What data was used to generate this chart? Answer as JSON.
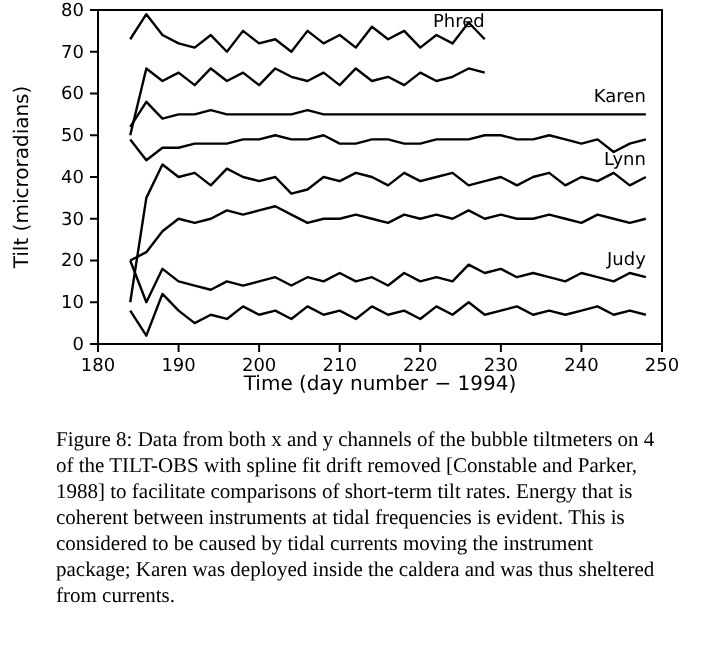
{
  "chart_data": {
    "type": "line",
    "xlabel": "Time (day number − 1994)",
    "ylabel": "Tilt (microradians)",
    "xlim": [
      180,
      250
    ],
    "xticks": [
      180,
      190,
      200,
      210,
      220,
      230,
      240,
      250
    ],
    "ylim": [
      0,
      80
    ],
    "yticks": [
      0,
      10,
      20,
      30,
      40,
      50,
      60,
      70,
      80
    ],
    "series": [
      {
        "name": "Phred",
        "color": "#000000",
        "x": [
          184,
          186,
          188,
          190,
          192,
          194,
          196,
          198,
          200,
          202,
          204,
          206,
          208,
          210,
          212,
          214,
          216,
          218,
          220,
          222,
          224,
          226,
          228
        ],
        "values": [
          73,
          79,
          74,
          72,
          71,
          74,
          70,
          75,
          72,
          73,
          70,
          75,
          72,
          74,
          71,
          76,
          73,
          75,
          71,
          74,
          72,
          77,
          73
        ]
      },
      {
        "color": "#000000",
        "x": [
          184,
          186,
          188,
          190,
          192,
          194,
          196,
          198,
          200,
          202,
          204,
          206,
          208,
          210,
          212,
          214,
          216,
          218,
          220,
          222,
          224,
          226,
          228
        ],
        "values": [
          50,
          66,
          63,
          65,
          62,
          66,
          63,
          65,
          62,
          66,
          64,
          63,
          65,
          62,
          66,
          63,
          64,
          62,
          65,
          63,
          64,
          66,
          65
        ]
      },
      {
        "name": "Karen",
        "color": "#000000",
        "x": [
          184,
          186,
          188,
          190,
          192,
          194,
          196,
          198,
          200,
          202,
          204,
          206,
          208,
          210,
          212,
          214,
          216,
          218,
          220,
          222,
          224,
          226,
          228,
          230,
          232,
          234,
          236,
          238,
          240,
          242,
          244,
          246,
          248
        ],
        "values": [
          52,
          58,
          54,
          55,
          55,
          56,
          55,
          55,
          55,
          55,
          55,
          56,
          55,
          55,
          55,
          55,
          55,
          55,
          55,
          55,
          55,
          55,
          55,
          55,
          55,
          55,
          55,
          55,
          55,
          55,
          55,
          55,
          55
        ]
      },
      {
        "color": "#000000",
        "x": [
          184,
          186,
          188,
          190,
          192,
          194,
          196,
          198,
          200,
          202,
          204,
          206,
          208,
          210,
          212,
          214,
          216,
          218,
          220,
          222,
          224,
          226,
          228,
          230,
          232,
          234,
          236,
          238,
          240,
          242,
          244,
          246,
          248
        ],
        "values": [
          49,
          44,
          47,
          47,
          48,
          48,
          48,
          49,
          49,
          50,
          49,
          49,
          50,
          48,
          48,
          49,
          49,
          48,
          48,
          49,
          49,
          49,
          50,
          50,
          49,
          49,
          50,
          49,
          48,
          49,
          46,
          48,
          49
        ]
      },
      {
        "name": "Lynn",
        "color": "#000000",
        "x": [
          184,
          186,
          188,
          190,
          192,
          194,
          196,
          198,
          200,
          202,
          204,
          206,
          208,
          210,
          212,
          214,
          216,
          218,
          220,
          222,
          224,
          226,
          228,
          230,
          232,
          234,
          236,
          238,
          240,
          242,
          244,
          246,
          248
        ],
        "values": [
          10,
          35,
          43,
          40,
          41,
          38,
          42,
          40,
          39,
          40,
          36,
          37,
          40,
          39,
          41,
          40,
          38,
          41,
          39,
          40,
          41,
          38,
          39,
          40,
          38,
          40,
          41,
          38,
          40,
          39,
          41,
          38,
          40
        ]
      },
      {
        "color": "#000000",
        "x": [
          184,
          186,
          188,
          190,
          192,
          194,
          196,
          198,
          200,
          202,
          204,
          206,
          208,
          210,
          212,
          214,
          216,
          218,
          220,
          222,
          224,
          226,
          228,
          230,
          232,
          234,
          236,
          238,
          240,
          242,
          244,
          246,
          248
        ],
        "values": [
          20,
          22,
          27,
          30,
          29,
          30,
          32,
          31,
          32,
          33,
          31,
          29,
          30,
          30,
          31,
          30,
          29,
          31,
          30,
          31,
          30,
          32,
          30,
          31,
          30,
          30,
          31,
          30,
          29,
          31,
          30,
          29,
          30
        ]
      },
      {
        "name": "Judy",
        "color": "#000000",
        "x": [
          184,
          186,
          188,
          190,
          192,
          194,
          196,
          198,
          200,
          202,
          204,
          206,
          208,
          210,
          212,
          214,
          216,
          218,
          220,
          222,
          224,
          226,
          228,
          230,
          232,
          234,
          236,
          238,
          240,
          242,
          244,
          246,
          248
        ],
        "values": [
          20,
          10,
          18,
          15,
          14,
          13,
          15,
          14,
          15,
          16,
          14,
          16,
          15,
          17,
          15,
          16,
          14,
          17,
          15,
          16,
          15,
          19,
          17,
          18,
          16,
          17,
          16,
          15,
          17,
          16,
          15,
          17,
          16
        ]
      },
      {
        "color": "#000000",
        "x": [
          184,
          186,
          188,
          190,
          192,
          194,
          196,
          198,
          200,
          202,
          204,
          206,
          208,
          210,
          212,
          214,
          216,
          218,
          220,
          222,
          224,
          226,
          228,
          230,
          232,
          234,
          236,
          238,
          240,
          242,
          244,
          246,
          248
        ],
        "values": [
          8,
          2,
          12,
          8,
          5,
          7,
          6,
          9,
          7,
          8,
          6,
          9,
          7,
          8,
          6,
          9,
          7,
          8,
          6,
          9,
          7,
          10,
          7,
          8,
          9,
          7,
          8,
          7,
          8,
          9,
          7,
          8,
          7
        ]
      }
    ],
    "annotations": [
      "Figure 8:  Data from both x and y channels of the bubble tiltmeters on 4 of the TILT-OBS with spline fit drift removed [Constable and Parker, 1988] to facilitate comparisons of short-term tilt rates. Energy that is coherent between instruments at tidal frequencies is evident.  This is considered to be caused by tidal currents moving the instrument package; Karen was deployed inside the caldera and was thus sheltered from currents."
    ]
  }
}
